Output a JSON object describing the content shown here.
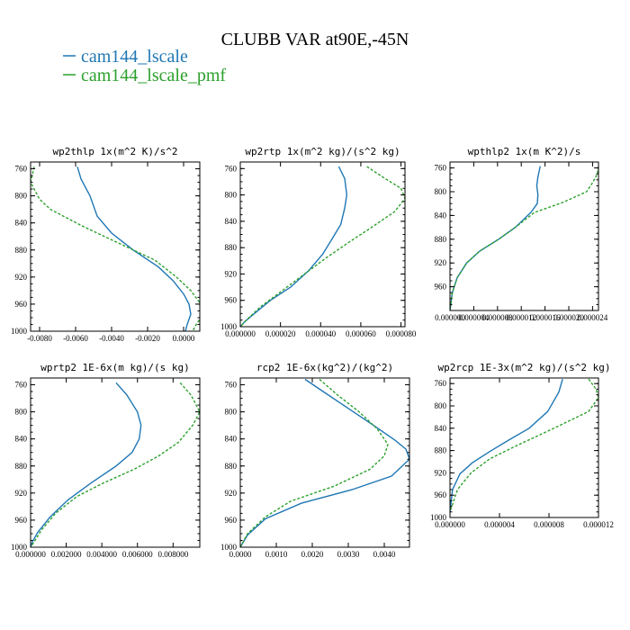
{
  "figure": {
    "title": "CLUBB VAR at90E,-45N",
    "legend": [
      {
        "label": "cam144_lscale",
        "color": "#1f77b4"
      },
      {
        "label": "cam144_lscale_pmf",
        "color": "#2ca02c"
      }
    ]
  },
  "chart_data": [
    {
      "type": "line",
      "title": "wp2thlp   1x(m^2 K)/s^2",
      "xlim": [
        -0.0085,
        0.0009
      ],
      "ylim": [
        1000,
        750
      ],
      "xticks": [
        -0.008,
        -0.006,
        -0.004,
        -0.002,
        0.0
      ],
      "xtick_labels": [
        "-0.0080",
        "-0.0060",
        "-0.0040",
        "-0.0020",
        "0.0000"
      ],
      "yticks": [
        760,
        800,
        840,
        880,
        920,
        960,
        1000
      ],
      "series": [
        {
          "name": "cam144_lscale",
          "color": "#1f77b4",
          "dashed": false,
          "x": [
            -0.0059,
            -0.0057,
            -0.0052,
            -0.0048,
            -0.004,
            -0.0028,
            -0.0014,
            -0.0006,
            0.0,
            0.0003,
            0.0004,
            0.0002,
            0.0001
          ],
          "y": [
            757,
            775,
            800,
            830,
            855,
            880,
            905,
            925,
            945,
            960,
            975,
            990,
            1000
          ]
        },
        {
          "name": "cam144_lscale_pmf",
          "color": "#2ca02c",
          "dashed": true,
          "x": [
            -0.0083,
            -0.0085,
            -0.008,
            -0.0074,
            -0.0056,
            -0.0036,
            -0.0016,
            -0.0004,
            0.0004,
            0.0009,
            0.0011,
            0.0007,
            0.0005
          ],
          "y": [
            757,
            780,
            805,
            820,
            845,
            870,
            895,
            920,
            940,
            958,
            975,
            990,
            1000
          ]
        }
      ]
    },
    {
      "type": "line",
      "title": "wp2rtp  1x(m^2 kg)/(s^2 kg)",
      "xlim": [
        0.0,
        8.2e-05
      ],
      "ylim": [
        1000,
        750
      ],
      "xticks": [
        0.0,
        2e-05,
        4e-05,
        6e-05,
        8e-05
      ],
      "xtick_labels": [
        "0.000000",
        "0.000020",
        "0.000040",
        "0.000060",
        "0.000080"
      ],
      "yticks": [
        760,
        800,
        840,
        880,
        920,
        960,
        1000
      ],
      "series": [
        {
          "name": "cam144_lscale",
          "color": "#1f77b4",
          "dashed": false,
          "x": [
            4.9e-05,
            5.2e-05,
            5.3e-05,
            5.2e-05,
            5e-05,
            4.6e-05,
            4.1e-05,
            3.4e-05,
            2.5e-05,
            1.5e-05,
            7e-06,
            2e-06,
            0.0
          ],
          "y": [
            757,
            775,
            800,
            820,
            845,
            865,
            890,
            915,
            940,
            960,
            980,
            993,
            1000
          ]
        },
        {
          "name": "cam144_lscale_pmf",
          "color": "#2ca02c",
          "dashed": true,
          "x": [
            6.3e-05,
            7.2e-05,
            8e-05,
            8.2e-05,
            7.7e-05,
            6.5e-05,
            5.5e-05,
            4.3e-05,
            3.2e-05,
            2.1e-05,
            1e-05,
            3e-06,
            0.0
          ],
          "y": [
            757,
            775,
            790,
            805,
            825,
            850,
            870,
            895,
            920,
            945,
            970,
            990,
            1000
          ]
        }
      ]
    },
    {
      "type": "line",
      "title": "wpthlp2  1x(m K^2)/s",
      "xlim": [
        0.0,
        2.5e-05
      ],
      "ylim": [
        1000,
        750
      ],
      "xticks": [
        0.0,
        4e-06,
        8e-06,
        1.2e-05,
        1.6e-05,
        2e-05,
        2.4e-05
      ],
      "xtick_labels": [
        "0.000000",
        "0.000004",
        "0.000008",
        "0.000012",
        "0.000016",
        "0.000020",
        "0.000024"
      ],
      "yticks": [
        760,
        800,
        840,
        880,
        920,
        960
      ],
      "series": [
        {
          "name": "cam144_lscale",
          "color": "#1f77b4",
          "dashed": false,
          "x": [
            1.52e-05,
            1.48e-05,
            1.46e-05,
            1.48e-05,
            1.47e-05,
            1.36e-05,
            1.1e-05,
            8.2e-06,
            5e-06,
            2.8e-06,
            1.2e-06,
            4e-07,
            0.0
          ],
          "y": [
            757,
            775,
            790,
            805,
            820,
            835,
            860,
            880,
            900,
            920,
            945,
            970,
            1000
          ]
        },
        {
          "name": "cam144_lscale_pmf",
          "color": "#2ca02c",
          "dashed": true,
          "x": [
            2.5e-05,
            2.48e-05,
            2.4e-05,
            2.3e-05,
            1.9e-05,
            1.42e-05,
            1.1e-05,
            8.2e-06,
            5e-06,
            2.8e-06,
            1.2e-06,
            4e-07,
            0.0
          ],
          "y": [
            757,
            770,
            785,
            800,
            818,
            835,
            860,
            880,
            900,
            920,
            945,
            970,
            1000
          ]
        }
      ]
    },
    {
      "type": "line",
      "title": "wprtp2  1E-6x(m kg)/(s kg)",
      "xlim": [
        0.0,
        0.0095
      ],
      "ylim": [
        1000,
        750
      ],
      "xticks": [
        0.0,
        0.002,
        0.004,
        0.006,
        0.008
      ],
      "xtick_labels": [
        "0.000000",
        "0.002000",
        "0.004000",
        "0.006000",
        "0.008000"
      ],
      "yticks": [
        760,
        800,
        840,
        880,
        920,
        960,
        1000
      ],
      "series": [
        {
          "name": "cam144_lscale",
          "color": "#1f77b4",
          "dashed": false,
          "x": [
            0.0048,
            0.0054,
            0.006,
            0.0062,
            0.0061,
            0.0057,
            0.0048,
            0.0034,
            0.0021,
            0.0011,
            0.0004,
            0.0001,
            0.0
          ],
          "y": [
            757,
            775,
            800,
            820,
            840,
            860,
            880,
            905,
            930,
            955,
            978,
            992,
            1000
          ]
        },
        {
          "name": "cam144_lscale_pmf",
          "color": "#2ca02c",
          "dashed": true,
          "x": [
            0.0084,
            0.009,
            0.0095,
            0.0091,
            0.0083,
            0.0072,
            0.0058,
            0.0041,
            0.0026,
            0.0014,
            0.0006,
            0.0002,
            0.0
          ],
          "y": [
            757,
            775,
            800,
            820,
            845,
            865,
            885,
            905,
            925,
            950,
            975,
            992,
            1000
          ]
        }
      ]
    },
    {
      "type": "line",
      "title": "rcp2  1E-6x(kg^2)/(kg^2)",
      "xlim": [
        0.0,
        0.0047
      ],
      "ylim": [
        1000,
        750
      ],
      "xticks": [
        0.0,
        0.001,
        0.002,
        0.003,
        0.004
      ],
      "xtick_labels": [
        "0.0000",
        "0.0010",
        "0.0020",
        "0.0030",
        "0.0040"
      ],
      "yticks": [
        760,
        800,
        840,
        880,
        920,
        960,
        1000
      ],
      "series": [
        {
          "name": "cam144_lscale",
          "color": "#1f77b4",
          "dashed": false,
          "x": [
            0.0018,
            0.0023,
            0.003,
            0.0037,
            0.0043,
            0.0046,
            0.0047,
            0.0042,
            0.0031,
            0.0017,
            0.0007,
            0.0002,
            0.0
          ],
          "y": [
            752,
            770,
            795,
            820,
            842,
            855,
            870,
            895,
            915,
            935,
            958,
            982,
            1000
          ]
        },
        {
          "name": "cam144_lscale_pmf",
          "color": "#2ca02c",
          "dashed": true,
          "x": [
            0.0022,
            0.0027,
            0.0033,
            0.0038,
            0.0041,
            0.004,
            0.0036,
            0.0026,
            0.0014,
            0.0007,
            0.0002,
            0.0
          ],
          "y": [
            752,
            775,
            800,
            825,
            848,
            865,
            885,
            910,
            932,
            955,
            980,
            1000
          ]
        }
      ]
    },
    {
      "type": "line",
      "title": "wp2rcp  1E-3x(m^2 kg)/(s^2 kg)",
      "xlim": [
        0.0,
        1.2e-05
      ],
      "ylim": [
        1000,
        750
      ],
      "xticks": [
        0.0,
        4e-06,
        8e-06,
        1.2e-05
      ],
      "xtick_labels": [
        "0.000000",
        "0.000004",
        "0.000008",
        "0.000012"
      ],
      "yticks": [
        760,
        800,
        840,
        880,
        920,
        960,
        1000
      ],
      "series": [
        {
          "name": "cam144_lscale",
          "color": "#1f77b4",
          "dashed": false,
          "x": [
            9.1e-06,
            8.8e-06,
            7.9e-06,
            6.4e-06,
            4.7e-06,
            3.2e-06,
            1.8e-06,
            8e-07,
            2e-07,
            0.0
          ],
          "y": [
            752,
            775,
            810,
            840,
            862,
            882,
            902,
            922,
            950,
            990
          ]
        },
        {
          "name": "cam144_lscale_pmf",
          "color": "#2ca02c",
          "dashed": true,
          "x": [
            1.12e-05,
            1.18e-05,
            1.2e-05,
            1.12e-05,
            8.4e-06,
            5.5e-06,
            3.2e-06,
            1.7e-06,
            6e-07,
            0.0
          ],
          "y": [
            752,
            770,
            785,
            810,
            840,
            870,
            895,
            920,
            950,
            990
          ]
        }
      ]
    }
  ]
}
